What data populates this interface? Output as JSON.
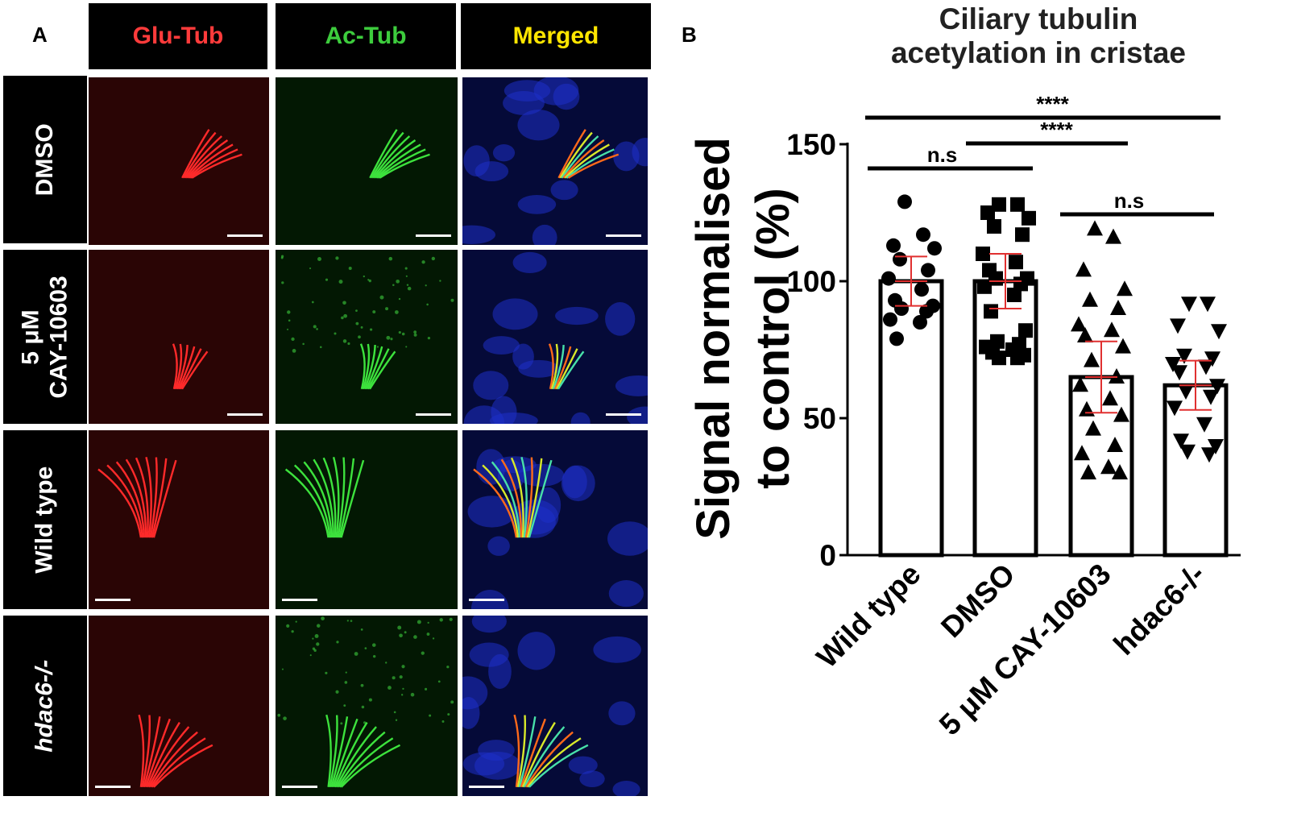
{
  "panel_a": {
    "letter": "A",
    "columns": [
      {
        "label": "Glu-Tub",
        "color": "#ff3b3b"
      },
      {
        "label": "Ac-Tub",
        "color": "#3dcc3d"
      },
      {
        "label": "Merged",
        "color": "#ffe600"
      }
    ],
    "rows": [
      {
        "label_lines": [
          "DMSO"
        ],
        "italic": false
      },
      {
        "label_lines": [
          "5 μM",
          "CAY-10603"
        ],
        "italic": false
      },
      {
        "label_lines": [
          "Wild type"
        ],
        "italic": false
      },
      {
        "label_lines": [
          "hdac6-/-"
        ],
        "italic": true
      }
    ]
  },
  "panel_b": {
    "letter": "B"
  },
  "chart_data": {
    "type": "bar",
    "title": "Ciliary tubulin acetylation in cristae",
    "title_lines": [
      "Ciliary tubulin",
      "acetylation in cristae"
    ],
    "ylabel": "Signal normalised to control (%)",
    "ylabel_lines": [
      "Signal normalised",
      "to control (%)"
    ],
    "ylim": [
      0,
      150
    ],
    "yticks": [
      0,
      50,
      100,
      150
    ],
    "categories": [
      "Wild type",
      "DMSO",
      "5 μM CAY-10603",
      "hdac6-/-"
    ],
    "values": [
      100,
      100,
      65,
      62
    ],
    "error": [
      {
        "low": 91,
        "high": 109
      },
      {
        "low": 90,
        "high": 110
      },
      {
        "low": 52,
        "high": 78
      },
      {
        "low": 53,
        "high": 71
      }
    ],
    "markers": [
      "circle",
      "square",
      "triangle-up",
      "triangle-down"
    ],
    "points": [
      [
        129,
        117,
        113,
        112,
        108,
        104,
        101,
        97,
        93,
        91,
        90,
        89,
        86,
        85,
        79
      ],
      [
        128,
        128,
        125,
        123,
        120,
        117,
        110,
        107,
        104,
        101,
        101,
        99,
        98,
        95,
        89,
        82,
        78,
        77,
        76,
        75,
        74,
        73,
        72,
        72
      ],
      [
        119,
        116,
        104,
        97,
        93,
        90,
        84,
        82,
        80,
        76,
        71,
        65,
        62,
        57,
        53,
        51,
        46,
        40,
        37,
        32,
        30,
        30
      ],
      [
        92,
        92,
        84,
        82,
        73,
        72,
        70,
        69,
        67,
        62,
        60,
        58,
        54,
        48,
        42,
        40,
        38,
        37
      ]
    ],
    "significance": [
      {
        "from": 0,
        "to": 3,
        "label": "****"
      },
      {
        "from": 1,
        "to": 2,
        "label": "****"
      },
      {
        "from": 0,
        "to": 1,
        "label": "n.s"
      },
      {
        "from": 2,
        "to": 3,
        "label": "n.s"
      }
    ],
    "error_color": "#e03030"
  }
}
